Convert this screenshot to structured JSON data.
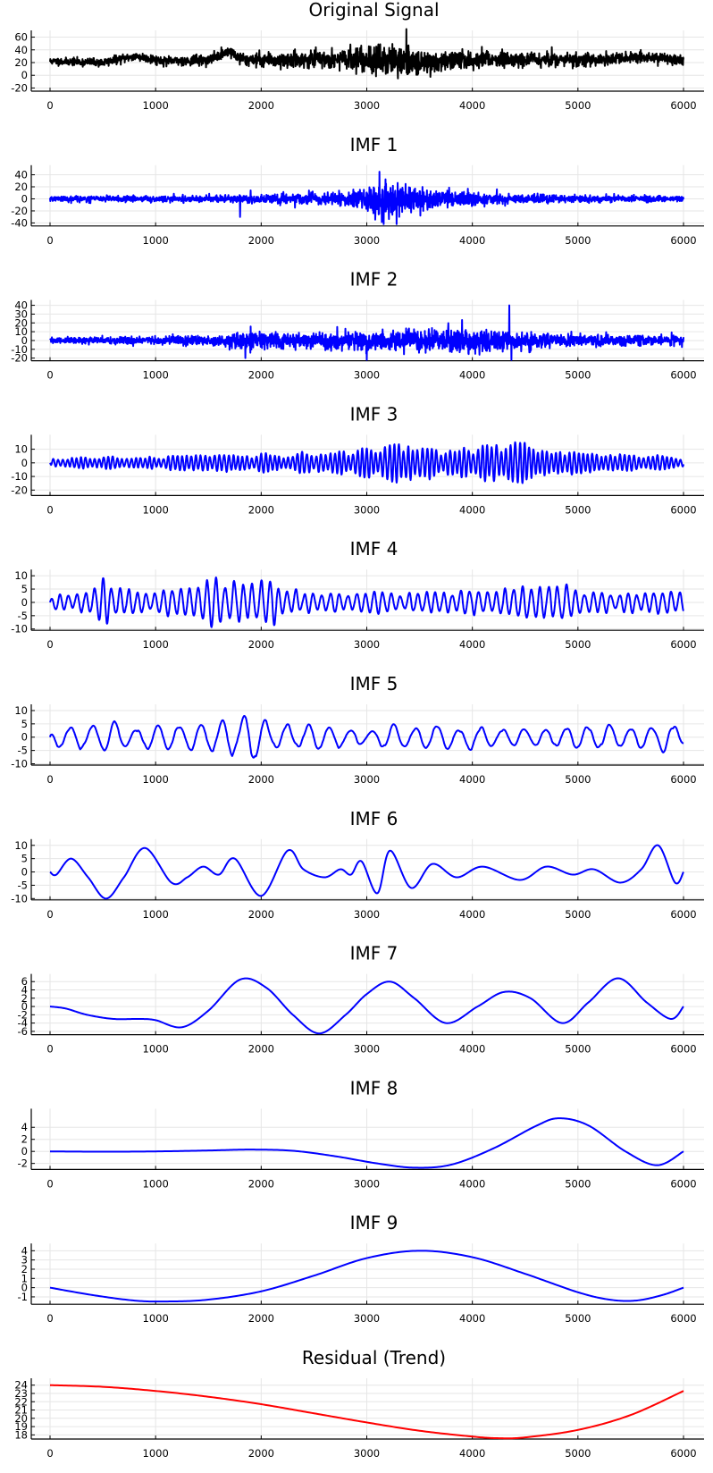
{
  "chart_data": [
    {
      "type": "line",
      "title": "Original Signal",
      "color": "#000000",
      "xlim": [
        0,
        6000
      ],
      "xticks": [
        0,
        1000,
        2000,
        3000,
        4000,
        5000,
        6000
      ],
      "yticks": [
        -20,
        0,
        20,
        40,
        60
      ],
      "ytick_labels": [
        "-20",
        "0",
        "20",
        "40",
        "60"
      ],
      "ylim": [
        -25,
        65
      ],
      "grid": true,
      "series": [
        {
          "kind": "noise",
          "base": [
            [
              0,
              22
            ],
            [
              500,
              20
            ],
            [
              800,
              30
            ],
            [
              1100,
              22
            ],
            [
              1500,
              24
            ],
            [
              1700,
              38
            ],
            [
              1800,
              26
            ],
            [
              2200,
              24
            ],
            [
              3000,
              26
            ],
            [
              3500,
              20
            ],
            [
              4200,
              26
            ],
            [
              5000,
              24
            ],
            [
              5800,
              28
            ],
            [
              6000,
              22
            ]
          ],
          "amp": [
            [
              0,
              5
            ],
            [
              1600,
              7
            ],
            [
              2000,
              10
            ],
            [
              2800,
              12
            ],
            [
              3100,
              22
            ],
            [
              3400,
              20
            ],
            [
              3600,
              14
            ],
            [
              4500,
              10
            ],
            [
              6000,
              7
            ]
          ],
          "seed": 11,
          "n": 2400
        }
      ]
    },
    {
      "type": "line",
      "title": "IMF 1",
      "color": "#0000ff",
      "xlim": [
        0,
        6000
      ],
      "xticks": [
        0,
        1000,
        2000,
        3000,
        4000,
        5000,
        6000
      ],
      "yticks": [
        -40,
        -20,
        0,
        20,
        40
      ],
      "ytick_labels": [
        "-40",
        "-20",
        "0",
        "20",
        "40"
      ],
      "ylim": [
        -45,
        50
      ],
      "grid": true,
      "series": [
        {
          "kind": "noise",
          "base": [
            [
              0,
              0
            ],
            [
              6000,
              0
            ]
          ],
          "amp": [
            [
              0,
              4
            ],
            [
              1700,
              5
            ],
            [
              2000,
              7
            ],
            [
              2800,
              9
            ],
            [
              3000,
              20
            ],
            [
              3150,
              35
            ],
            [
              3400,
              20
            ],
            [
              3700,
              12
            ],
            [
              4500,
              6
            ],
            [
              6000,
              4
            ]
          ],
          "spikes": [
            [
              1800,
              -30
            ],
            [
              1900,
              14
            ],
            [
              3120,
              45
            ],
            [
              3160,
              -42
            ]
          ],
          "seed": 21,
          "n": 2400
        }
      ]
    },
    {
      "type": "line",
      "title": "IMF 2",
      "color": "#0000ff",
      "xlim": [
        0,
        6000
      ],
      "xticks": [
        0,
        1000,
        2000,
        3000,
        4000,
        5000,
        6000
      ],
      "yticks": [
        -20,
        -10,
        0,
        10,
        20,
        30,
        40
      ],
      "ytick_labels": [
        "-20",
        "-10",
        "0",
        "10",
        "20",
        "30",
        "40"
      ],
      "ylim": [
        -23,
        42
      ],
      "grid": true,
      "series": [
        {
          "kind": "noise",
          "base": [
            [
              0,
              0
            ],
            [
              6000,
              0
            ]
          ],
          "amp": [
            [
              0,
              3
            ],
            [
              1600,
              5
            ],
            [
              1900,
              9
            ],
            [
              2300,
              7
            ],
            [
              3000,
              10
            ],
            [
              3500,
              11
            ],
            [
              4000,
              12
            ],
            [
              4500,
              9
            ],
            [
              5000,
              6
            ],
            [
              6000,
              4
            ]
          ],
          "spikes": [
            [
              1850,
              -20
            ],
            [
              1900,
              16
            ],
            [
              3000,
              -22
            ],
            [
              4350,
              40
            ],
            [
              4370,
              -22
            ]
          ],
          "seed": 31,
          "n": 2400
        }
      ]
    },
    {
      "type": "line",
      "title": "IMF 3",
      "color": "#0000ff",
      "xlim": [
        0,
        6000
      ],
      "xticks": [
        0,
        1000,
        2000,
        3000,
        4000,
        5000,
        6000
      ],
      "yticks": [
        -20,
        -10,
        0,
        10
      ],
      "ytick_labels": [
        "-20",
        "-10",
        "0",
        "10"
      ],
      "ylim": [
        -24,
        18
      ],
      "grid": true,
      "series": [
        {
          "kind": "osc",
          "period": 45,
          "amp": [
            [
              0,
              4
            ],
            [
              1200,
              6
            ],
            [
              2000,
              7
            ],
            [
              2800,
              9
            ],
            [
              3300,
              14
            ],
            [
              3800,
              11
            ],
            [
              4350,
              16
            ],
            [
              4800,
              9
            ],
            [
              6000,
              5
            ]
          ],
          "phase": 0.5,
          "seed": 41,
          "n": 2400
        }
      ]
    },
    {
      "type": "line",
      "title": "IMF 4",
      "color": "#0000ff",
      "xlim": [
        0,
        6000
      ],
      "xticks": [
        0,
        1000,
        2000,
        3000,
        4000,
        5000,
        6000
      ],
      "yticks": [
        -10,
        -5,
        0,
        5,
        10
      ],
      "ytick_labels": [
        "-10",
        "-5",
        "0",
        "5",
        "10"
      ],
      "ylim": [
        -10.5,
        11
      ],
      "grid": true,
      "series": [
        {
          "kind": "osc",
          "period": 85,
          "amp": [
            [
              0,
              3
            ],
            [
              400,
              5
            ],
            [
              500,
              9
            ],
            [
              700,
              6
            ],
            [
              1000,
              5
            ],
            [
              1700,
              10
            ],
            [
              2100,
              9
            ],
            [
              2400,
              4
            ],
            [
              3000,
              4
            ],
            [
              4200,
              5
            ],
            [
              4600,
              7
            ],
            [
              4800,
              9
            ],
            [
              5100,
              4
            ],
            [
              5500,
              4
            ],
            [
              6000,
              5
            ]
          ],
          "phase": 0.1,
          "seed": 51,
          "n": 2400
        }
      ]
    },
    {
      "type": "line",
      "title": "IMF 5",
      "color": "#0000ff",
      "xlim": [
        0,
        6000
      ],
      "xticks": [
        0,
        1000,
        2000,
        3000,
        4000,
        5000,
        6000
      ],
      "yticks": [
        -10,
        -5,
        0,
        5,
        10
      ],
      "ytick_labels": [
        "-10",
        "-5",
        "0",
        "5",
        "10"
      ],
      "ylim": [
        -10.5,
        11
      ],
      "grid": true,
      "series": [
        {
          "kind": "osc",
          "period": 210,
          "amp": [
            [
              0,
              4
            ],
            [
              400,
              6
            ],
            [
              900,
              5
            ],
            [
              1700,
              7
            ],
            [
              1950,
              11
            ],
            [
              2150,
              6
            ],
            [
              3000,
              4
            ],
            [
              3400,
              6
            ],
            [
              4500,
              4
            ],
            [
              5800,
              7
            ],
            [
              6000,
              4
            ]
          ],
          "phase": 0.3,
          "seed": 61,
          "n": 2000
        }
      ]
    },
    {
      "type": "line",
      "title": "IMF 6",
      "color": "#0000ff",
      "xlim": [
        0,
        6000
      ],
      "xticks": [
        0,
        1000,
        2000,
        3000,
        4000,
        5000,
        6000
      ],
      "yticks": [
        -10,
        -5,
        0,
        5,
        10
      ],
      "ytick_labels": [
        "-10",
        "-5",
        "0",
        "5",
        "10"
      ],
      "ylim": [
        -10.5,
        11
      ],
      "grid": true,
      "series": [
        {
          "kind": "points",
          "x": [
            0,
            60,
            200,
            360,
            530,
            700,
            900,
            1150,
            1300,
            1450,
            1600,
            1750,
            2000,
            2250,
            2400,
            2600,
            2750,
            2850,
            2950,
            3100,
            3220,
            3420,
            3620,
            3850,
            4100,
            4450,
            4700,
            4950,
            5150,
            5400,
            5600,
            5760,
            5920,
            6000
          ],
          "y": [
            0,
            -1,
            5,
            -2,
            -10,
            -2,
            9,
            -4,
            -2,
            2,
            -1,
            5,
            -9,
            8,
            1,
            -2,
            1,
            -1,
            4,
            -8,
            8,
            -6,
            3,
            -2,
            2,
            -3,
            2,
            -1,
            1,
            -4,
            1,
            10,
            -4,
            0
          ]
        }
      ]
    },
    {
      "type": "line",
      "title": "IMF 7",
      "color": "#0000ff",
      "xlim": [
        0,
        6000
      ],
      "xticks": [
        0,
        1000,
        2000,
        3000,
        4000,
        5000,
        6000
      ],
      "yticks": [
        -6,
        -4,
        -2,
        0,
        2,
        4,
        6
      ],
      "ytick_labels": [
        "-6",
        "-4",
        "-2",
        "0",
        "2",
        "4",
        "6"
      ],
      "ylim": [
        -6.8,
        7
      ],
      "grid": true,
      "series": [
        {
          "kind": "points",
          "x": [
            0,
            150,
            350,
            600,
            850,
            1000,
            1250,
            1500,
            1800,
            2050,
            2300,
            2550,
            2800,
            3000,
            3220,
            3450,
            3750,
            4050,
            4300,
            4550,
            4850,
            5100,
            5380,
            5650,
            5880,
            6000
          ],
          "y": [
            0,
            -0.5,
            -2,
            -3,
            -3,
            -3.3,
            -5,
            -1,
            6.5,
            4.5,
            -2,
            -6.5,
            -2,
            3,
            6,
            2,
            -4,
            0,
            3.5,
            2,
            -4,
            1,
            6.8,
            1,
            -3,
            0
          ]
        }
      ]
    },
    {
      "type": "line",
      "title": "IMF 8",
      "color": "#0000ff",
      "xlim": [
        0,
        6000
      ],
      "xticks": [
        0,
        1000,
        2000,
        3000,
        4000,
        5000,
        6000
      ],
      "yticks": [
        -2,
        0,
        2,
        4
      ],
      "ytick_labels": [
        "-2",
        "0",
        "2",
        "4"
      ],
      "ylim": [
        -3,
        6.5
      ],
      "grid": true,
      "series": [
        {
          "kind": "points",
          "x": [
            0,
            500,
            1000,
            1500,
            1900,
            2300,
            2700,
            3100,
            3450,
            3800,
            4200,
            4600,
            4820,
            5100,
            5450,
            5750,
            6000
          ],
          "y": [
            0,
            -0.05,
            0,
            0.15,
            0.3,
            0.1,
            -0.8,
            -2,
            -2.7,
            -2.2,
            0.5,
            4.2,
            5.5,
            4.3,
            0,
            -2.3,
            0
          ]
        }
      ]
    },
    {
      "type": "line",
      "title": "IMF 9",
      "color": "#0000ff",
      "xlim": [
        0,
        6000
      ],
      "xticks": [
        0,
        1000,
        2000,
        3000,
        4000,
        5000,
        6000
      ],
      "yticks": [
        -1,
        0,
        1,
        2,
        3,
        4
      ],
      "ytick_labels": [
        "-1",
        "0",
        "1",
        "2",
        "3",
        "4"
      ],
      "ylim": [
        -1.8,
        4.4
      ],
      "grid": true,
      "series": [
        {
          "kind": "points",
          "x": [
            0,
            400,
            800,
            1100,
            1500,
            2000,
            2500,
            3000,
            3500,
            4000,
            4500,
            5000,
            5300,
            5550,
            5800,
            6000
          ],
          "y": [
            0,
            -0.8,
            -1.4,
            -1.5,
            -1.3,
            -0.4,
            1.3,
            3.2,
            4.0,
            3.3,
            1.5,
            -0.5,
            -1.3,
            -1.4,
            -0.8,
            0
          ]
        }
      ]
    },
    {
      "type": "line",
      "title": "Residual (Trend)",
      "color": "#ff0000",
      "xlim": [
        0,
        6000
      ],
      "xticks": [
        0,
        1000,
        2000,
        3000,
        4000,
        5000,
        6000
      ],
      "yticks": [
        18,
        19,
        20,
        21,
        22,
        23,
        24
      ],
      "ytick_labels": [
        "18",
        "19",
        "20",
        "21",
        "22",
        "23",
        "24"
      ],
      "ylim": [
        17.5,
        24.4
      ],
      "grid": true,
      "series": [
        {
          "kind": "points",
          "x": [
            0,
            500,
            1000,
            1500,
            2000,
            2500,
            3000,
            3500,
            4000,
            4250,
            4500,
            5000,
            5500,
            6000
          ],
          "y": [
            24,
            23.8,
            23.3,
            22.6,
            21.7,
            20.6,
            19.5,
            18.5,
            17.8,
            17.6,
            17.7,
            18.6,
            20.4,
            23.3
          ]
        }
      ]
    }
  ]
}
